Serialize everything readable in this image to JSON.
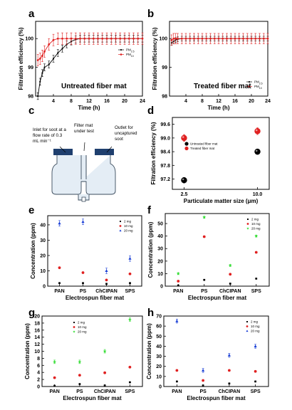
{
  "colors": {
    "black": "#000000",
    "red": "#e02020",
    "green": "#33dd33",
    "blue": "#1a3fd6",
    "mat": "#1f3f6e"
  },
  "panels": {
    "a": {
      "letter": "a",
      "inset": "Untreated fiber mat"
    },
    "b": {
      "letter": "b",
      "inset": "Treated fiber mat"
    },
    "c": {
      "letter": "c",
      "inlet": [
        "Inlet for soot at a",
        "flow rate of 0.3",
        "mL min⁻¹"
      ],
      "filter": [
        "Filter mat",
        "under test"
      ],
      "outlet": [
        "Outlet for",
        "uncaptured",
        "soot"
      ]
    },
    "d": {
      "letter": "d"
    },
    "e": {
      "letter": "e"
    },
    "f": {
      "letter": "f"
    },
    "g": {
      "letter": "g"
    },
    "h": {
      "letter": "h"
    }
  },
  "chart_data": [
    {
      "id": "a",
      "type": "line",
      "xlabel": "Time (h)",
      "ylabel": "Filtration efficiency (%)",
      "xlim": [
        0,
        24
      ],
      "ylim": [
        98,
        100.6
      ],
      "xticks": [
        4,
        8,
        12,
        16,
        20,
        24
      ],
      "yticks": [
        98,
        99,
        100
      ],
      "legend": "right",
      "series": [
        {
          "name": "PM2.5",
          "color": "black",
          "x": [
            0.5,
            1,
            1.5,
            2,
            3,
            4,
            5,
            6,
            7,
            8,
            9,
            10,
            11,
            12,
            13,
            14,
            15,
            16,
            17,
            18,
            19,
            20,
            21,
            22,
            23,
            24
          ],
          "y": [
            98.0,
            98.5,
            98.8,
            99.0,
            99.1,
            99.3,
            99.5,
            99.65,
            99.8,
            99.9,
            99.97,
            100,
            100,
            100,
            100,
            100,
            100,
            100,
            100,
            100,
            100,
            100,
            100,
            100,
            100,
            100
          ],
          "err": 0.12
        },
        {
          "name": "PM10",
          "color": "red",
          "x": [
            0.5,
            1,
            1.5,
            2,
            3,
            4,
            5,
            6,
            7,
            8,
            9,
            10,
            11,
            12,
            13,
            14,
            15,
            16,
            17,
            18,
            19,
            20,
            21,
            22,
            23,
            24
          ],
          "y": [
            99.25,
            99.3,
            99.4,
            99.55,
            99.8,
            99.95,
            100,
            100,
            100,
            100,
            100,
            100,
            100,
            100,
            100,
            100,
            100,
            100,
            100,
            100,
            100,
            100,
            100,
            100,
            100,
            100
          ],
          "err": 0.2
        }
      ]
    },
    {
      "id": "b",
      "type": "line",
      "xlabel": "Time (h)",
      "ylabel": "Filtration efficiency (%)",
      "xlim": [
        0,
        24
      ],
      "ylim": [
        98,
        100.6
      ],
      "xticks": [
        4,
        8,
        12,
        16,
        20,
        24
      ],
      "yticks": [
        98,
        99,
        100
      ],
      "legend": "bottom-right",
      "series": [
        {
          "name": "PM2.5",
          "color": "black",
          "x": [
            0.5,
            1,
            1.5,
            2,
            3,
            4,
            5,
            6,
            7,
            8,
            9,
            10,
            11,
            12,
            13,
            14,
            15,
            16,
            17,
            18,
            19,
            20,
            21,
            22,
            23,
            24
          ],
          "y": [
            99.85,
            99.9,
            99.95,
            99.98,
            100,
            100,
            100,
            100,
            100,
            100,
            100,
            100,
            100,
            100,
            100,
            100,
            100,
            100,
            100,
            100,
            100,
            100,
            100,
            100,
            100,
            100
          ],
          "err": 0.08
        },
        {
          "name": "PM10",
          "color": "red",
          "x": [
            0.5,
            1,
            1.5,
            2,
            3,
            4,
            5,
            6,
            7,
            8,
            9,
            10,
            11,
            12,
            13,
            14,
            15,
            16,
            17,
            18,
            19,
            20,
            21,
            22,
            23,
            24
          ],
          "y": [
            99.95,
            100,
            100,
            100,
            100,
            100,
            100,
            100,
            100,
            100,
            100,
            100,
            100,
            100,
            100,
            100,
            100,
            100,
            100,
            100,
            100,
            100,
            100,
            100,
            100,
            100
          ],
          "err": 0.18
        }
      ]
    },
    {
      "id": "d",
      "type": "scatter",
      "xlabel": "Particulate matter size (μm)",
      "ylabel": "Filtration efficiency (%)",
      "xlim": [
        1.3,
        11.2
      ],
      "ylim": [
        96.75,
        99.9
      ],
      "xticks": [
        2.5,
        10.0
      ],
      "xticklabels": [
        "2.5",
        "10.0"
      ],
      "yticks": [
        97.2,
        97.8,
        98.4,
        99.0,
        99.6
      ],
      "legend": "center",
      "series": [
        {
          "name": "Untreated fiber mat",
          "color": "black",
          "x": [
            2.5,
            10.0
          ],
          "y": [
            97.15,
            98.4
          ],
          "err": 0.12
        },
        {
          "name": "Treated fiber mat",
          "color": "red",
          "x": [
            2.5,
            10.0
          ],
          "y": [
            99.0,
            99.3
          ],
          "err": 0.15
        }
      ]
    },
    {
      "id": "e",
      "type": "scatter",
      "xlabel": "Electrospun fiber mat",
      "ylabel": "Concentration (ppm)",
      "categories": [
        "PAN",
        "PS",
        "ChCIPAN",
        "SPS"
      ],
      "ylim": [
        0,
        46
      ],
      "yticks": [
        0,
        10,
        20,
        30,
        40
      ],
      "legend": "top-right",
      "series": [
        {
          "name": "2 mg",
          "color": "black",
          "marker": "square",
          "values": [
            2,
            2,
            1.5,
            2
          ],
          "err": 0.3
        },
        {
          "name": "10 mg",
          "color": "red",
          "marker": "circle",
          "values": [
            12,
            8.8,
            4,
            8
          ],
          "err": 0.4
        },
        {
          "name": "20 mg",
          "color": "blue",
          "marker": "triangle",
          "values": [
            41,
            42,
            10,
            18
          ],
          "err": 1.8
        }
      ]
    },
    {
      "id": "f",
      "type": "scatter",
      "xlabel": "Electrospun fiber mat",
      "ylabel": "Concentration (ppm)",
      "categories": [
        "PAN",
        "PS",
        "ChCIPAN",
        "SPS"
      ],
      "ylim": [
        0,
        58
      ],
      "yticks": [
        0,
        10,
        20,
        30,
        40,
        50
      ],
      "legend": "top-right",
      "series": [
        {
          "name": "2 mg",
          "color": "black",
          "marker": "square",
          "values": [
            0.5,
            5,
            2,
            6
          ],
          "err": 0.3
        },
        {
          "name": "10 mg",
          "color": "red",
          "marker": "circle",
          "values": [
            4,
            39.5,
            9.5,
            27
          ],
          "err": 0.6
        },
        {
          "name": "20 mg",
          "color": "green",
          "marker": "star",
          "values": [
            10,
            55,
            16.5,
            40
          ],
          "err": 0.8
        }
      ]
    },
    {
      "id": "g",
      "type": "scatter",
      "xlabel": "Electrospun fiber mat",
      "ylabel": "Concentration (ppm)",
      "categories": [
        "PAN",
        "PS",
        "ChCIPAN",
        "SPS"
      ],
      "ylim": [
        0,
        20
      ],
      "yticks": [
        0,
        2,
        4,
        6,
        8,
        10,
        12,
        14,
        16,
        18,
        20
      ],
      "legend": "top-left",
      "series": [
        {
          "name": "2 mg",
          "color": "black",
          "marker": "square",
          "values": [
            0.2,
            0.7,
            0.3,
            1.2
          ],
          "err": 0.1
        },
        {
          "name": "10 mg",
          "color": "red",
          "marker": "circle",
          "values": [
            2.5,
            3.2,
            3.9,
            5.5
          ],
          "err": 0.2
        },
        {
          "name": "20 mg",
          "color": "green",
          "marker": "star",
          "values": [
            7,
            7,
            10,
            19
          ],
          "err": 0.5
        }
      ]
    },
    {
      "id": "h",
      "type": "scatter",
      "xlabel": "Electrospun fiber mat",
      "ylabel": "Concentration (ppm)",
      "categories": [
        "PAN",
        "PS",
        "ChCIPAN",
        "SPS"
      ],
      "ylim": [
        0,
        70
      ],
      "yticks": [
        0,
        10,
        20,
        30,
        40,
        50,
        60,
        70
      ],
      "legend": "top-right",
      "series": [
        {
          "name": "2 mg",
          "color": "black",
          "marker": "square",
          "values": [
            5,
            1,
            3,
            5
          ],
          "err": 0.4
        },
        {
          "name": "10 mg",
          "color": "red",
          "marker": "circle",
          "values": [
            16,
            6,
            16,
            15
          ],
          "err": 0.5
        },
        {
          "name": "20 mg",
          "color": "blue",
          "marker": "triangle",
          "values": [
            65,
            16,
            31,
            40
          ],
          "err": 2
        }
      ]
    }
  ]
}
